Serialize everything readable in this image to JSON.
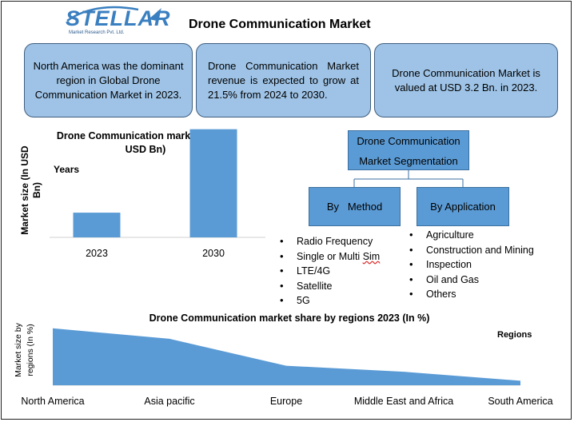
{
  "logo": {
    "text": "STELLAR",
    "subtext": "Market Research Pvt. Ltd."
  },
  "title": "Drone Communication Market",
  "info_boxes": {
    "north_america": "North America was the dominant region in Global Drone Communication Market in 2023.",
    "growth": "Drone Communication Market revenue is expected to grow at 21.5% from 2024 to 2030.",
    "value": "Drone Communication Market is valued at USD 3.2 Bn. in 2023."
  },
  "segmentation": {
    "title_line1": "Drone Communication",
    "title_line2": "Market Segmentation",
    "method_label": "By   Method",
    "application_label": "By Application",
    "methods": [
      "Radio Frequency",
      "Single or Multi Sim",
      "LTE/4G",
      "Satellite",
      "5G"
    ],
    "applications": [
      "Agriculture",
      "Construction and Mining",
      "Inspection",
      "Oil and Gas",
      "Others"
    ]
  },
  "colors": {
    "bar": "#5b9bd5",
    "box_fill": "#9ec3e6",
    "accent": "#3a7fc0"
  },
  "chart_data": [
    {
      "type": "bar",
      "title_line1": "Drone Communication market Size(In",
      "title_line2": "USD Bn)",
      "xlabel": "Years",
      "ylabel_line1": "Market size (In USD",
      "ylabel_line2": "Bn)",
      "categories": [
        "2023",
        "2030"
      ],
      "values": [
        3.2,
        14.0
      ],
      "ylim": [
        0,
        15
      ],
      "grid": false,
      "legend": "none"
    },
    {
      "type": "area",
      "title": "Drone Communication market share by regions 2023  (In %)",
      "legend_label": "Regions",
      "ylabel_line1": "Market size by",
      "ylabel_line2": "regions (In %)",
      "categories": [
        "North America",
        "Asia pacific",
        "Europe",
        "Middle East and Africa",
        "South America"
      ],
      "values": [
        38,
        31,
        13,
        9,
        3
      ],
      "ylim": [
        0,
        40
      ],
      "grid": false,
      "legend": "top-right"
    }
  ]
}
